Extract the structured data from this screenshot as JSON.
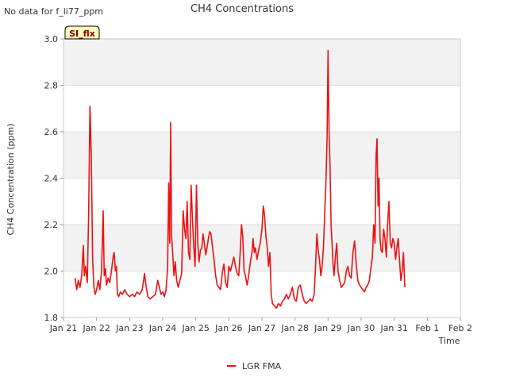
{
  "nodata_text": "No data for f_li77_ppm",
  "badge_text": "SI_flx",
  "colors": {
    "series": "#ee1111",
    "band": "#f2f2f2",
    "badge_bg": "#ffffc0"
  },
  "chart_data": {
    "type": "line",
    "title": "CH4 Concentrations",
    "xlabel": "Time",
    "ylabel": "CH4 Concentration (ppm)",
    "ylim": [
      1.8,
      3.0
    ],
    "xlim": [
      21,
      33
    ],
    "grid": true,
    "legend": "bottom-center",
    "x_ticks": [
      {
        "x": 21,
        "label": "Jan 21"
      },
      {
        "x": 22,
        "label": "Jan 22"
      },
      {
        "x": 23,
        "label": "Jan 23"
      },
      {
        "x": 24,
        "label": "Jan 24"
      },
      {
        "x": 25,
        "label": "Jan 25"
      },
      {
        "x": 26,
        "label": "Jan 26"
      },
      {
        "x": 27,
        "label": "Jan 27"
      },
      {
        "x": 28,
        "label": "Jan 28"
      },
      {
        "x": 29,
        "label": "Jan 29"
      },
      {
        "x": 30,
        "label": "Jan 30"
      },
      {
        "x": 31,
        "label": "Jan 31"
      },
      {
        "x": 32,
        "label": "Feb 1"
      },
      {
        "x": 33,
        "label": "Feb 2"
      }
    ],
    "y_ticks": [
      {
        "y": 1.8,
        "label": "1.8"
      },
      {
        "y": 2.0,
        "label": "2.0"
      },
      {
        "y": 2.2,
        "label": "2.2"
      },
      {
        "y": 2.4,
        "label": "2.4"
      },
      {
        "y": 2.6,
        "label": "2.6"
      },
      {
        "y": 2.8,
        "label": "2.8"
      },
      {
        "y": 3.0,
        "label": "3.0"
      }
    ],
    "series": [
      {
        "name": "LGR FMA",
        "color": "#ee1111",
        "points": [
          [
            21.35,
            1.97
          ],
          [
            21.4,
            1.92
          ],
          [
            21.45,
            1.96
          ],
          [
            21.5,
            1.93
          ],
          [
            21.55,
            1.98
          ],
          [
            21.6,
            2.11
          ],
          [
            21.63,
            1.98
          ],
          [
            21.67,
            2.02
          ],
          [
            21.72,
            1.95
          ],
          [
            21.76,
            2.25
          ],
          [
            21.8,
            2.71
          ],
          [
            21.84,
            2.5
          ],
          [
            21.88,
            2.05
          ],
          [
            21.92,
            1.93
          ],
          [
            21.96,
            1.9
          ],
          [
            22.0,
            1.92
          ],
          [
            22.05,
            1.96
          ],
          [
            22.1,
            1.92
          ],
          [
            22.15,
            2.0
          ],
          [
            22.2,
            2.26
          ],
          [
            22.23,
            1.98
          ],
          [
            22.27,
            2.01
          ],
          [
            22.3,
            1.94
          ],
          [
            22.35,
            1.97
          ],
          [
            22.4,
            1.95
          ],
          [
            22.45,
            2.0
          ],
          [
            22.5,
            2.06
          ],
          [
            22.53,
            2.08
          ],
          [
            22.57,
            2.0
          ],
          [
            22.6,
            2.02
          ],
          [
            22.63,
            1.9
          ],
          [
            22.67,
            1.89
          ],
          [
            22.72,
            1.91
          ],
          [
            22.78,
            1.9
          ],
          [
            22.85,
            1.92
          ],
          [
            22.92,
            1.9
          ],
          [
            23.0,
            1.89
          ],
          [
            23.08,
            1.9
          ],
          [
            23.15,
            1.89
          ],
          [
            23.22,
            1.91
          ],
          [
            23.3,
            1.9
          ],
          [
            23.38,
            1.92
          ],
          [
            23.45,
            1.99
          ],
          [
            23.5,
            1.93
          ],
          [
            23.55,
            1.89
          ],
          [
            23.62,
            1.88
          ],
          [
            23.7,
            1.89
          ],
          [
            23.78,
            1.9
          ],
          [
            23.85,
            1.96
          ],
          [
            23.9,
            1.93
          ],
          [
            23.95,
            1.9
          ],
          [
            24.0,
            1.91
          ],
          [
            24.05,
            1.89
          ],
          [
            24.1,
            1.92
          ],
          [
            24.15,
            2.02
          ],
          [
            24.18,
            2.38
          ],
          [
            24.21,
            2.12
          ],
          [
            24.24,
            2.64
          ],
          [
            24.27,
            2.15
          ],
          [
            24.3,
            2.08
          ],
          [
            24.34,
            1.98
          ],
          [
            24.38,
            2.04
          ],
          [
            24.42,
            1.96
          ],
          [
            24.47,
            1.93
          ],
          [
            24.52,
            1.96
          ],
          [
            24.57,
            1.99
          ],
          [
            24.62,
            2.26
          ],
          [
            24.66,
            2.18
          ],
          [
            24.7,
            2.14
          ],
          [
            24.74,
            2.3
          ],
          [
            24.78,
            2.08
          ],
          [
            24.82,
            2.05
          ],
          [
            24.86,
            2.37
          ],
          [
            24.9,
            2.22
          ],
          [
            24.94,
            2.1
          ],
          [
            24.98,
            2.02
          ],
          [
            25.02,
            2.37
          ],
          [
            25.06,
            2.12
          ],
          [
            25.1,
            2.04
          ],
          [
            25.14,
            2.09
          ],
          [
            25.18,
            2.1
          ],
          [
            25.22,
            2.16
          ],
          [
            25.26,
            2.12
          ],
          [
            25.3,
            2.07
          ],
          [
            25.34,
            2.1
          ],
          [
            25.38,
            2.14
          ],
          [
            25.42,
            2.17
          ],
          [
            25.46,
            2.16
          ],
          [
            25.5,
            2.11
          ],
          [
            25.55,
            2.05
          ],
          [
            25.6,
            1.98
          ],
          [
            25.65,
            1.94
          ],
          [
            25.7,
            1.93
          ],
          [
            25.75,
            1.92
          ],
          [
            25.8,
            1.99
          ],
          [
            25.85,
            2.03
          ],
          [
            25.9,
            1.95
          ],
          [
            25.95,
            1.93
          ],
          [
            26.0,
            2.02
          ],
          [
            26.05,
            2.0
          ],
          [
            26.1,
            2.03
          ],
          [
            26.15,
            2.06
          ],
          [
            26.2,
            2.02
          ],
          [
            26.25,
            1.99
          ],
          [
            26.3,
            1.98
          ],
          [
            26.35,
            2.1
          ],
          [
            26.38,
            2.2
          ],
          [
            26.42,
            2.15
          ],
          [
            26.46,
            2.0
          ],
          [
            26.5,
            1.98
          ],
          [
            26.55,
            1.94
          ],
          [
            26.6,
            1.98
          ],
          [
            26.65,
            2.04
          ],
          [
            26.7,
            2.08
          ],
          [
            26.73,
            2.14
          ],
          [
            26.77,
            2.08
          ],
          [
            26.8,
            2.1
          ],
          [
            26.85,
            2.05
          ],
          [
            26.9,
            2.09
          ],
          [
            26.95,
            2.12
          ],
          [
            27.0,
            2.18
          ],
          [
            27.04,
            2.28
          ],
          [
            27.08,
            2.24
          ],
          [
            27.12,
            2.15
          ],
          [
            27.16,
            2.1
          ],
          [
            27.2,
            2.02
          ],
          [
            27.24,
            2.08
          ],
          [
            27.28,
            1.9
          ],
          [
            27.32,
            1.86
          ],
          [
            27.38,
            1.85
          ],
          [
            27.44,
            1.84
          ],
          [
            27.5,
            1.86
          ],
          [
            27.56,
            1.85
          ],
          [
            27.62,
            1.87
          ],
          [
            27.68,
            1.88
          ],
          [
            27.74,
            1.9
          ],
          [
            27.8,
            1.88
          ],
          [
            27.86,
            1.9
          ],
          [
            27.92,
            1.93
          ],
          [
            27.98,
            1.88
          ],
          [
            28.04,
            1.87
          ],
          [
            28.1,
            1.93
          ],
          [
            28.16,
            1.94
          ],
          [
            28.22,
            1.9
          ],
          [
            28.28,
            1.87
          ],
          [
            28.34,
            1.86
          ],
          [
            28.4,
            1.87
          ],
          [
            28.46,
            1.88
          ],
          [
            28.52,
            1.87
          ],
          [
            28.58,
            1.9
          ],
          [
            28.62,
            2.02
          ],
          [
            28.66,
            2.16
          ],
          [
            28.7,
            2.09
          ],
          [
            28.74,
            2.05
          ],
          [
            28.78,
            1.98
          ],
          [
            28.82,
            2.02
          ],
          [
            28.86,
            2.1
          ],
          [
            28.9,
            2.26
          ],
          [
            28.94,
            2.4
          ],
          [
            28.97,
            2.58
          ],
          [
            29.0,
            2.95
          ],
          [
            29.03,
            2.6
          ],
          [
            29.06,
            2.45
          ],
          [
            29.09,
            2.2
          ],
          [
            29.12,
            2.12
          ],
          [
            29.15,
            2.03
          ],
          [
            29.18,
            1.98
          ],
          [
            29.22,
            2.06
          ],
          [
            29.26,
            2.12
          ],
          [
            29.3,
            2.0
          ],
          [
            29.35,
            1.96
          ],
          [
            29.4,
            1.93
          ],
          [
            29.45,
            1.94
          ],
          [
            29.5,
            1.95
          ],
          [
            29.55,
            2.0
          ],
          [
            29.6,
            2.02
          ],
          [
            29.65,
            1.98
          ],
          [
            29.7,
            1.97
          ],
          [
            29.75,
            2.08
          ],
          [
            29.8,
            2.13
          ],
          [
            29.85,
            2.03
          ],
          [
            29.9,
            1.96
          ],
          [
            29.95,
            1.94
          ],
          [
            30.0,
            1.93
          ],
          [
            30.05,
            1.92
          ],
          [
            30.1,
            1.91
          ],
          [
            30.15,
            1.93
          ],
          [
            30.2,
            1.94
          ],
          [
            30.25,
            1.96
          ],
          [
            30.3,
            2.02
          ],
          [
            30.34,
            2.06
          ],
          [
            30.38,
            2.2
          ],
          [
            30.42,
            2.12
          ],
          [
            30.45,
            2.5
          ],
          [
            30.48,
            2.57
          ],
          [
            30.51,
            2.28
          ],
          [
            30.54,
            2.4
          ],
          [
            30.57,
            2.14
          ],
          [
            30.6,
            2.09
          ],
          [
            30.64,
            2.08
          ],
          [
            30.68,
            2.18
          ],
          [
            30.72,
            2.14
          ],
          [
            30.76,
            2.06
          ],
          [
            30.8,
            2.2
          ],
          [
            30.84,
            2.3
          ],
          [
            30.88,
            2.12
          ],
          [
            30.92,
            2.1
          ],
          [
            30.96,
            2.14
          ],
          [
            31.0,
            2.12
          ],
          [
            31.04,
            2.05
          ],
          [
            31.08,
            2.1
          ],
          [
            31.12,
            2.14
          ],
          [
            31.16,
            2.05
          ],
          [
            31.2,
            1.96
          ],
          [
            31.24,
            2.0
          ],
          [
            31.28,
            2.08
          ],
          [
            31.32,
            1.93
          ]
        ]
      }
    ]
  }
}
